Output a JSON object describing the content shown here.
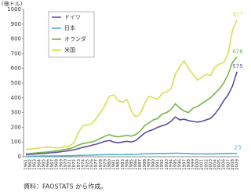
{
  "chart_data": {
    "type": "line",
    "y_unit_label": "(億ドル)",
    "source": "資料：FAOSTATS から作成。",
    "x": [
      1961,
      1962,
      1963,
      1964,
      1965,
      1966,
      1967,
      1968,
      1969,
      1970,
      1971,
      1972,
      1973,
      1974,
      1975,
      1976,
      1977,
      1978,
      1979,
      1980,
      1981,
      1982,
      1983,
      1984,
      1985,
      1986,
      1987,
      1988,
      1989,
      1990,
      1991,
      1992,
      1993,
      1994,
      1995,
      1996,
      1997,
      1998,
      1999,
      2000,
      2001,
      2002,
      2003,
      2004,
      2005,
      2006,
      2007,
      2008,
      2009
    ],
    "xlim": [
      1961,
      2009
    ],
    "ylim": [
      0,
      1000
    ],
    "yticks": [
      0,
      100,
      200,
      300,
      400,
      500,
      600,
      700,
      800,
      900,
      1000
    ],
    "grid": false,
    "series": [
      {
        "name": "ドイツ",
        "color": "#5b4f9f",
        "values": [
          15,
          16,
          18,
          20,
          22,
          25,
          28,
          30,
          34,
          38,
          42,
          48,
          55,
          65,
          70,
          78,
          85,
          95,
          105,
          110,
          100,
          95,
          100,
          105,
          100,
          110,
          135,
          160,
          175,
          185,
          200,
          210,
          220,
          240,
          270,
          250,
          255,
          245,
          240,
          235,
          240,
          250,
          260,
          290,
          330,
          380,
          420,
          480,
          575
        ]
      },
      {
        "name": "日本",
        "color": "#4fb3c8",
        "values": [
          3,
          3,
          4,
          4,
          5,
          5,
          5,
          6,
          6,
          7,
          7,
          8,
          9,
          10,
          10,
          11,
          12,
          13,
          14,
          15,
          15,
          14,
          14,
          15,
          15,
          16,
          18,
          20,
          20,
          21,
          21,
          22,
          22,
          23,
          24,
          23,
          22,
          21,
          20,
          20,
          20,
          19,
          19,
          20,
          21,
          21,
          22,
          22,
          23
        ]
      },
      {
        "name": "オランダ",
        "color": "#7ab648",
        "values": [
          20,
          22,
          25,
          28,
          30,
          33,
          36,
          40,
          45,
          50,
          55,
          65,
          80,
          90,
          95,
          100,
          110,
          125,
          140,
          150,
          140,
          135,
          140,
          145,
          140,
          150,
          175,
          210,
          230,
          250,
          260,
          290,
          300,
          320,
          360,
          330,
          310,
          300,
          330,
          340,
          360,
          380,
          400,
          430,
          460,
          500,
          560,
          640,
          676
        ]
      },
      {
        "name": "米国",
        "color": "#d6e050",
        "values": [
          50,
          52,
          55,
          60,
          62,
          65,
          62,
          60,
          63,
          70,
          75,
          95,
          170,
          210,
          215,
          225,
          260,
          300,
          350,
          410,
          420,
          380,
          370,
          390,
          310,
          270,
          290,
          360,
          410,
          400,
          390,
          430,
          440,
          460,
          560,
          610,
          650,
          600,
          560,
          520,
          540,
          560,
          550,
          610,
          630,
          640,
          700,
          860,
          927
        ]
      }
    ]
  }
}
